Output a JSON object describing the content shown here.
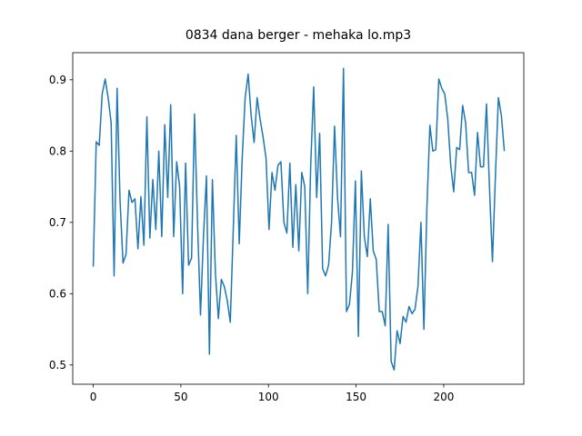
{
  "chart_data": {
    "type": "line",
    "title": "0834 dana berger - mehaka lo.mp3",
    "x": [
      0,
      1.7,
      3.4,
      5.1,
      6.8,
      8.5,
      10.2,
      11.9,
      13.6,
      15.3,
      17,
      18.7,
      20.4,
      22.1,
      23.8,
      25.5,
      27.2,
      28.9,
      30.6,
      32.3,
      34,
      35.7,
      37.4,
      39.1,
      40.8,
      42.5,
      44.2,
      45.9,
      47.6,
      49.3,
      51,
      52.7,
      54.4,
      56.1,
      57.8,
      59.5,
      61.2,
      62.9,
      64.6,
      66.3,
      68,
      69.7,
      71.4,
      73.1,
      74.8,
      76.5,
      78.2,
      79.9,
      81.6,
      83.3,
      85,
      86.7,
      88.4,
      90.1,
      91.8,
      93.5,
      95.2,
      96.9,
      98.6,
      100.3,
      102,
      103.7,
      105.4,
      107.1,
      108.8,
      110.5,
      112.2,
      113.9,
      115.6,
      117.3,
      119,
      120.7,
      122.4,
      124.1,
      125.8,
      127.5,
      129.2,
      130.9,
      132.6,
      134.3,
      136,
      137.7,
      139.4,
      141.1,
      142.8,
      144.5,
      146.2,
      147.9,
      149.6,
      151.3,
      153,
      154.7,
      156.4,
      158.1,
      159.8,
      161.5,
      163.2,
      164.9,
      166.6,
      168.3,
      170,
      171.7,
      173.4,
      175.1,
      176.8,
      178.5,
      180.2,
      181.9,
      183.6,
      185.3,
      187,
      188.7,
      190.4,
      192.1,
      193.8,
      195.5,
      197.2,
      198.9,
      200.6,
      202.3,
      204,
      205.7,
      207.4,
      209.1,
      210.8,
      212.5,
      214.2,
      215.9,
      217.6,
      219.3,
      221,
      222.7,
      224.4,
      226.1,
      227.8,
      229.5,
      231.2,
      232.9,
      234.6
    ],
    "series": [
      {
        "color": "#1f77b4",
        "values": [
          0.638,
          0.813,
          0.808,
          0.88,
          0.901,
          0.875,
          0.84,
          0.625,
          0.888,
          0.73,
          0.643,
          0.655,
          0.745,
          0.728,
          0.733,
          0.663,
          0.736,
          0.668,
          0.848,
          0.678,
          0.76,
          0.69,
          0.8,
          0.68,
          0.837,
          0.735,
          0.865,
          0.68,
          0.785,
          0.75,
          0.6,
          0.783,
          0.64,
          0.65,
          0.852,
          0.7,
          0.57,
          0.68,
          0.765,
          0.515,
          0.76,
          0.63,
          0.565,
          0.62,
          0.61,
          0.59,
          0.56,
          0.69,
          0.822,
          0.67,
          0.79,
          0.875,
          0.908,
          0.85,
          0.812,
          0.875,
          0.845,
          0.82,
          0.79,
          0.69,
          0.77,
          0.745,
          0.78,
          0.785,
          0.7,
          0.685,
          0.783,
          0.665,
          0.753,
          0.66,
          0.77,
          0.75,
          0.6,
          0.78,
          0.89,
          0.735,
          0.825,
          0.635,
          0.625,
          0.64,
          0.7,
          0.835,
          0.735,
          0.68,
          0.916,
          0.575,
          0.585,
          0.63,
          0.758,
          0.54,
          0.772,
          0.68,
          0.652,
          0.733,
          0.66,
          0.648,
          0.575,
          0.575,
          0.555,
          0.697,
          0.505,
          0.493,
          0.548,
          0.53,
          0.568,
          0.56,
          0.582,
          0.572,
          0.578,
          0.61,
          0.7,
          0.55,
          0.72,
          0.836,
          0.8,
          0.802,
          0.901,
          0.888,
          0.88,
          0.845,
          0.78,
          0.743,
          0.805,
          0.802,
          0.864,
          0.84,
          0.77,
          0.77,
          0.738,
          0.826,
          0.778,
          0.778,
          0.866,
          0.75,
          0.645,
          0.765,
          0.875,
          0.85,
          0.8
        ]
      }
    ],
    "xlim": [
      -11.7,
      245.7
    ],
    "xticks": [
      0,
      50,
      100,
      150,
      200
    ],
    "ylim": [
      0.473,
      0.938
    ],
    "yticks": [
      0.5,
      0.6,
      0.7,
      0.8,
      0.9
    ],
    "grid": false
  }
}
